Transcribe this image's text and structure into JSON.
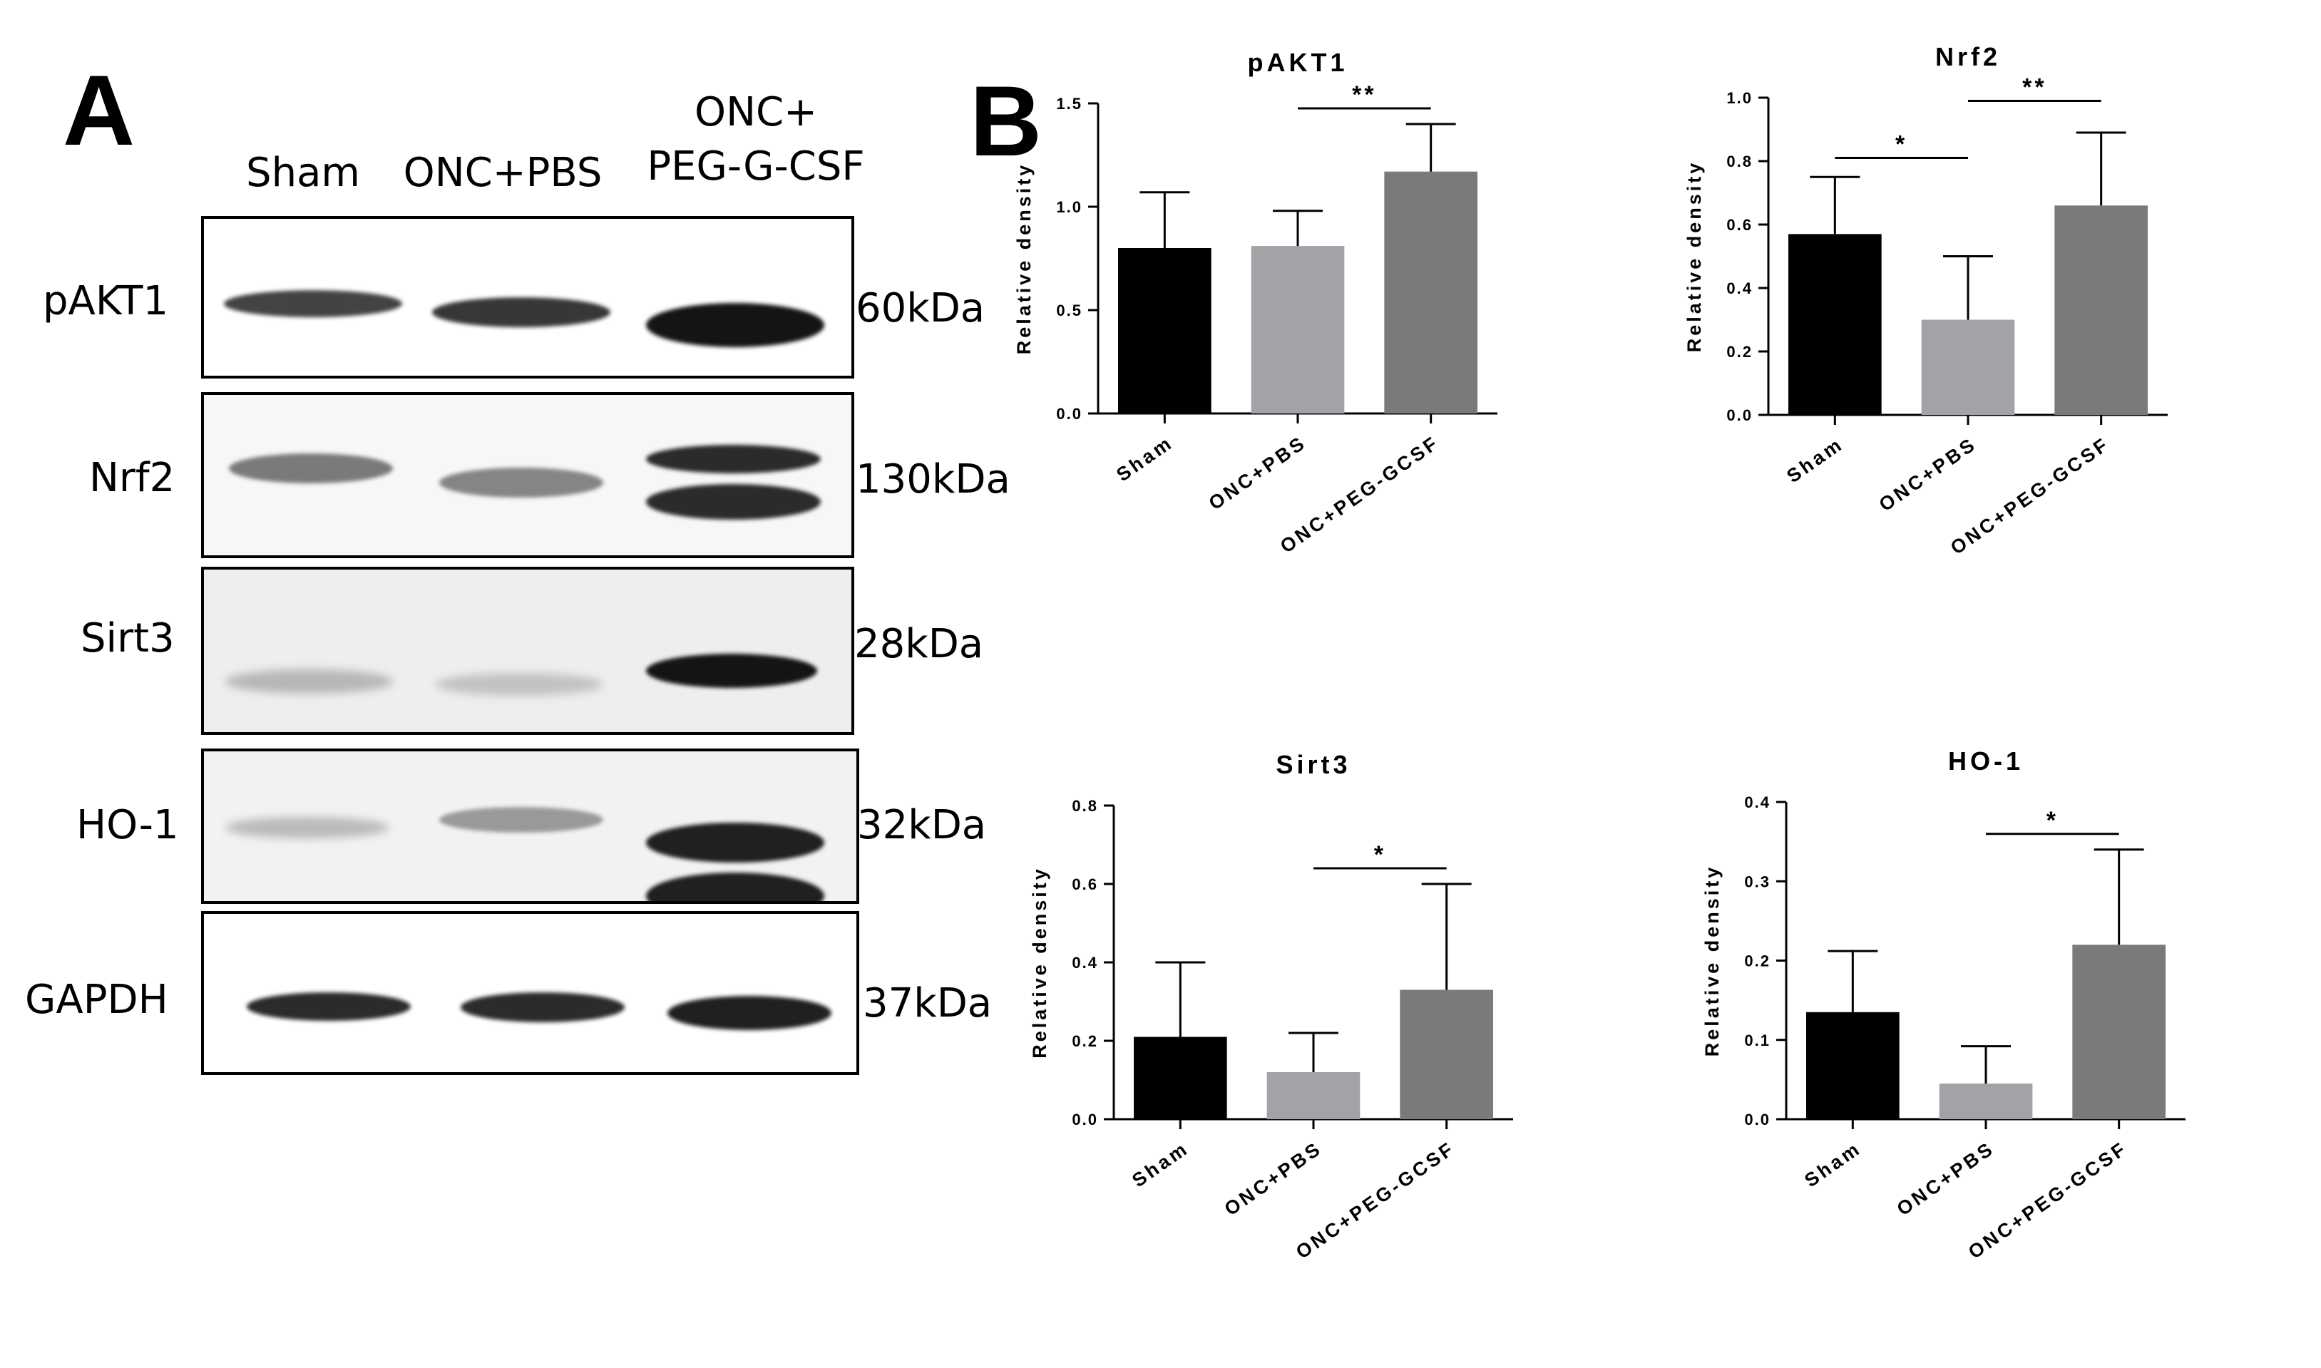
{
  "panel_a": {
    "letter": "A",
    "lanes": [
      "Sham",
      "ONC+PBS",
      "ONC+\nPEG-G-CSF"
    ],
    "blots": [
      {
        "protein": "pAKT1",
        "kda": "60kDa",
        "bg": "#ffffff",
        "intensity": [
          0.8,
          0.85,
          1.0
        ]
      },
      {
        "protein": "Nrf2",
        "kda": "130kDa",
        "bg": "#f7f7f7",
        "intensity": [
          0.55,
          0.5,
          0.9
        ]
      },
      {
        "protein": "Sirt3",
        "kda": "28kDa",
        "bg": "#eeeeee",
        "intensity": [
          0.25,
          0.2,
          1.0
        ]
      },
      {
        "protein": "HO-1",
        "kda": "32kDa",
        "bg": "#f2f2f2",
        "intensity": [
          0.25,
          0.4,
          0.95
        ]
      },
      {
        "protein": "GAPDH",
        "kda": "37kDa",
        "bg": "#ffffff",
        "intensity": [
          0.9,
          0.9,
          0.95
        ]
      }
    ]
  },
  "panel_b": {
    "letter": "B"
  },
  "chart_data": [
    {
      "type": "bar",
      "title": "pAKT1",
      "ylabel": "Relative density",
      "categories": [
        "Sham",
        "ONC+PBS",
        "ONC+PEG-GCSF"
      ],
      "values": [
        0.8,
        0.81,
        1.17
      ],
      "errors": [
        0.27,
        0.17,
        0.23
      ],
      "ylim": [
        0,
        1.5
      ],
      "yticks": [
        "0.0",
        "0.5",
        "1.0",
        "1.5"
      ],
      "colors": [
        "#000000",
        "#a3a2a7",
        "#7a7a7a"
      ],
      "significance": [
        {
          "from": 1,
          "to": 2,
          "label": "**"
        }
      ]
    },
    {
      "type": "bar",
      "title": "Nrf2",
      "ylabel": "Relative density",
      "categories": [
        "Sham",
        "ONC+PBS",
        "ONC+PEG-GCSF"
      ],
      "values": [
        0.57,
        0.3,
        0.66
      ],
      "errors": [
        0.18,
        0.2,
        0.23
      ],
      "ylim": [
        0,
        1.0
      ],
      "yticks": [
        "0.0",
        "0.2",
        "0.4",
        "0.6",
        "0.8",
        "1.0"
      ],
      "colors": [
        "#000000",
        "#a3a2a7",
        "#7a7a7a"
      ],
      "significance": [
        {
          "from": 0,
          "to": 1,
          "label": "*"
        },
        {
          "from": 1,
          "to": 2,
          "label": "**"
        }
      ]
    },
    {
      "type": "bar",
      "title": "Sirt3",
      "ylabel": "Relative density",
      "categories": [
        "Sham",
        "ONC+PBS",
        "ONC+PEG-GCSF"
      ],
      "values": [
        0.21,
        0.12,
        0.33
      ],
      "errors": [
        0.19,
        0.1,
        0.27
      ],
      "ylim": [
        0,
        0.8
      ],
      "yticks": [
        "0.0",
        "0.2",
        "0.4",
        "0.6",
        "0.8"
      ],
      "colors": [
        "#000000",
        "#a3a2a7",
        "#7a7a7a"
      ],
      "significance": [
        {
          "from": 1,
          "to": 2,
          "label": "*"
        }
      ]
    },
    {
      "type": "bar",
      "title": "HO-1",
      "ylabel": "Relative density",
      "categories": [
        "Sham",
        "ONC+PBS",
        "ONC+PEG-GCSF"
      ],
      "values": [
        0.135,
        0.045,
        0.22
      ],
      "errors": [
        0.077,
        0.047,
        0.12
      ],
      "ylim": [
        0,
        0.4
      ],
      "yticks": [
        "0.0",
        "0.1",
        "0.2",
        "0.3",
        "0.4"
      ],
      "colors": [
        "#000000",
        "#a3a2a7",
        "#7a7a7a"
      ],
      "significance": [
        {
          "from": 1,
          "to": 2,
          "label": "*"
        }
      ]
    }
  ]
}
